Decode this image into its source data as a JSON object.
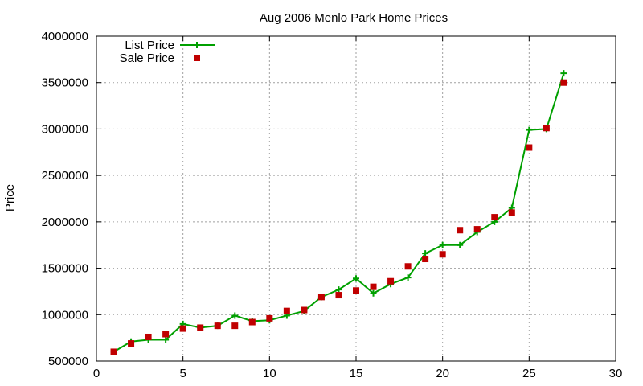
{
  "chart_data": {
    "type": "line",
    "title": "Aug 2006 Menlo Park Home Prices",
    "xlabel": "",
    "ylabel": "Price",
    "xlim": [
      0,
      30
    ],
    "ylim": [
      500000,
      4000000
    ],
    "xticks": [
      0,
      5,
      10,
      15,
      20,
      25,
      30
    ],
    "yticks": [
      500000,
      1000000,
      1500000,
      2000000,
      2500000,
      3000000,
      3500000,
      4000000
    ],
    "grid": true,
    "legend_position": "top-left",
    "series": [
      {
        "name": "List Price",
        "style": "line-points",
        "color": "#00a000",
        "x": [
          1,
          2,
          3,
          4,
          5,
          6,
          7,
          8,
          9,
          10,
          11,
          12,
          13,
          14,
          15,
          16,
          17,
          18,
          19,
          20,
          21,
          22,
          23,
          24,
          25,
          26,
          27
        ],
        "y": [
          600000,
          710000,
          730000,
          730000,
          900000,
          860000,
          880000,
          990000,
          930000,
          940000,
          990000,
          1040000,
          1190000,
          1270000,
          1390000,
          1230000,
          1330000,
          1400000,
          1660000,
          1750000,
          1750000,
          1890000,
          2000000,
          2150000,
          2990000,
          3000000,
          3600000
        ]
      },
      {
        "name": "Sale Price",
        "style": "points",
        "color": "#c00000",
        "x": [
          1,
          2,
          3,
          4,
          5,
          6,
          7,
          8,
          9,
          10,
          11,
          12,
          13,
          14,
          15,
          16,
          17,
          18,
          19,
          20,
          21,
          22,
          23,
          24,
          25,
          26,
          27
        ],
        "y": [
          600000,
          690000,
          760000,
          790000,
          850000,
          860000,
          880000,
          880000,
          920000,
          960000,
          1040000,
          1050000,
          1190000,
          1210000,
          1260000,
          1300000,
          1360000,
          1520000,
          1600000,
          1650000,
          1910000,
          1920000,
          2050000,
          2100000,
          2800000,
          3010000,
          3500000
        ]
      }
    ]
  }
}
